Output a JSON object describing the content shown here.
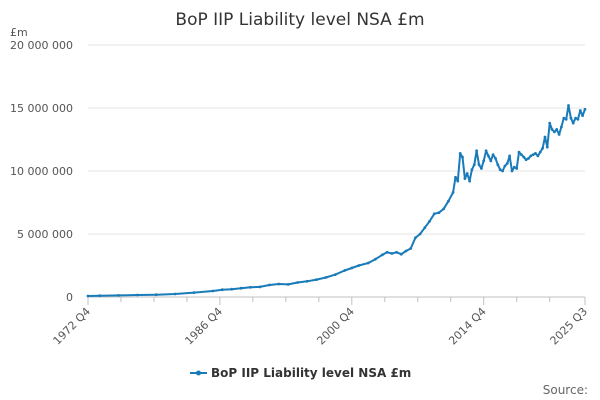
{
  "colors": {
    "series": "#1a7bb9"
  },
  "source": "Source:",
  "chart_data": {
    "type": "line",
    "title": "BoP IIP Liability level NSA £m",
    "ylabel": "£m",
    "xlabel": "",
    "ylim": [
      0,
      20000000
    ],
    "yticks": [
      {
        "value": 0,
        "label": "0"
      },
      {
        "value": 5000000,
        "label": "5 000 000"
      },
      {
        "value": 10000000,
        "label": "10 000 000"
      },
      {
        "value": 15000000,
        "label": "15 000 000"
      },
      {
        "value": 20000000,
        "label": "20 000 000"
      }
    ],
    "xrange": [
      1972.75,
      2025.5
    ],
    "xticks": [
      {
        "value": 1972.75,
        "label": "1972 Q4"
      },
      {
        "value": 1986.75,
        "label": "1986 Q4"
      },
      {
        "value": 2000.75,
        "label": "2000 Q4"
      },
      {
        "value": 2014.75,
        "label": "2014 Q4"
      },
      {
        "value": 2025.5,
        "label": "2025 Q3"
      }
    ],
    "minor_xticks": [
      1976.25,
      1979.75,
      1983.25,
      1990.25,
      1993.75,
      1997.25,
      2004.25,
      2007.75,
      2011.25,
      2018.25,
      2021.75
    ],
    "legend": "top-center below plot",
    "series": [
      {
        "name": "BoP IIP Liability level NSA £m",
        "points": [
          [
            1972.75,
            80000
          ],
          [
            1974,
            100000
          ],
          [
            1976,
            130000
          ],
          [
            1978,
            160000
          ],
          [
            1980,
            180000
          ],
          [
            1982,
            240000
          ],
          [
            1984,
            350000
          ],
          [
            1986,
            480000
          ],
          [
            1987,
            580000
          ],
          [
            1988,
            620000
          ],
          [
            1989,
            700000
          ],
          [
            1990,
            770000
          ],
          [
            1991,
            800000
          ],
          [
            1992,
            950000
          ],
          [
            1993,
            1030000
          ],
          [
            1994,
            1000000
          ],
          [
            1995,
            1150000
          ],
          [
            1996,
            1250000
          ],
          [
            1997,
            1380000
          ],
          [
            1998,
            1550000
          ],
          [
            1999,
            1780000
          ],
          [
            2000,
            2100000
          ],
          [
            2000.75,
            2300000
          ],
          [
            2001.5,
            2500000
          ],
          [
            2002.5,
            2700000
          ],
          [
            2003.25,
            3000000
          ],
          [
            2004,
            3350000
          ],
          [
            2004.5,
            3550000
          ],
          [
            2005,
            3450000
          ],
          [
            2005.5,
            3550000
          ],
          [
            2006,
            3400000
          ],
          [
            2006.5,
            3650000
          ],
          [
            2007,
            3850000
          ],
          [
            2007.5,
            4700000
          ],
          [
            2008,
            5000000
          ],
          [
            2008.5,
            5500000
          ],
          [
            2009,
            6000000
          ],
          [
            2009.5,
            6600000
          ],
          [
            2010,
            6700000
          ],
          [
            2010.5,
            7000000
          ],
          [
            2011,
            7600000
          ],
          [
            2011.5,
            8300000
          ],
          [
            2011.75,
            9500000
          ],
          [
            2012,
            9200000
          ],
          [
            2012.25,
            11400000
          ],
          [
            2012.5,
            11100000
          ],
          [
            2012.75,
            9400000
          ],
          [
            2013,
            9800000
          ],
          [
            2013.25,
            9200000
          ],
          [
            2013.5,
            10100000
          ],
          [
            2013.75,
            10500000
          ],
          [
            2014,
            11600000
          ],
          [
            2014.25,
            10500000
          ],
          [
            2014.5,
            10200000
          ],
          [
            2014.75,
            10800000
          ],
          [
            2015,
            11600000
          ],
          [
            2015.25,
            11200000
          ],
          [
            2015.5,
            10800000
          ],
          [
            2015.75,
            11300000
          ],
          [
            2016,
            11000000
          ],
          [
            2016.25,
            10500000
          ],
          [
            2016.5,
            10100000
          ],
          [
            2016.75,
            10000000
          ],
          [
            2017,
            10400000
          ],
          [
            2017.25,
            10600000
          ],
          [
            2017.5,
            11200000
          ],
          [
            2017.75,
            10000000
          ],
          [
            2018,
            10300000
          ],
          [
            2018.25,
            10200000
          ],
          [
            2018.5,
            11500000
          ],
          [
            2018.75,
            11300000
          ],
          [
            2019,
            11100000
          ],
          [
            2019.25,
            10900000
          ],
          [
            2019.5,
            11000000
          ],
          [
            2019.75,
            11200000
          ],
          [
            2020,
            11300000
          ],
          [
            2020.25,
            11400000
          ],
          [
            2020.5,
            11200000
          ],
          [
            2020.75,
            11500000
          ],
          [
            2021,
            11800000
          ],
          [
            2021.25,
            12700000
          ],
          [
            2021.5,
            11900000
          ],
          [
            2021.75,
            13800000
          ],
          [
            2022,
            13300000
          ],
          [
            2022.25,
            13100000
          ],
          [
            2022.5,
            13300000
          ],
          [
            2022.75,
            12900000
          ],
          [
            2023,
            13500000
          ],
          [
            2023.25,
            14200000
          ],
          [
            2023.5,
            14100000
          ],
          [
            2023.75,
            15200000
          ],
          [
            2024,
            14200000
          ],
          [
            2024.25,
            13800000
          ],
          [
            2024.5,
            14200000
          ],
          [
            2024.75,
            14100000
          ],
          [
            2025,
            14800000
          ],
          [
            2025.25,
            14400000
          ],
          [
            2025.5,
            14900000
          ]
        ]
      }
    ]
  }
}
